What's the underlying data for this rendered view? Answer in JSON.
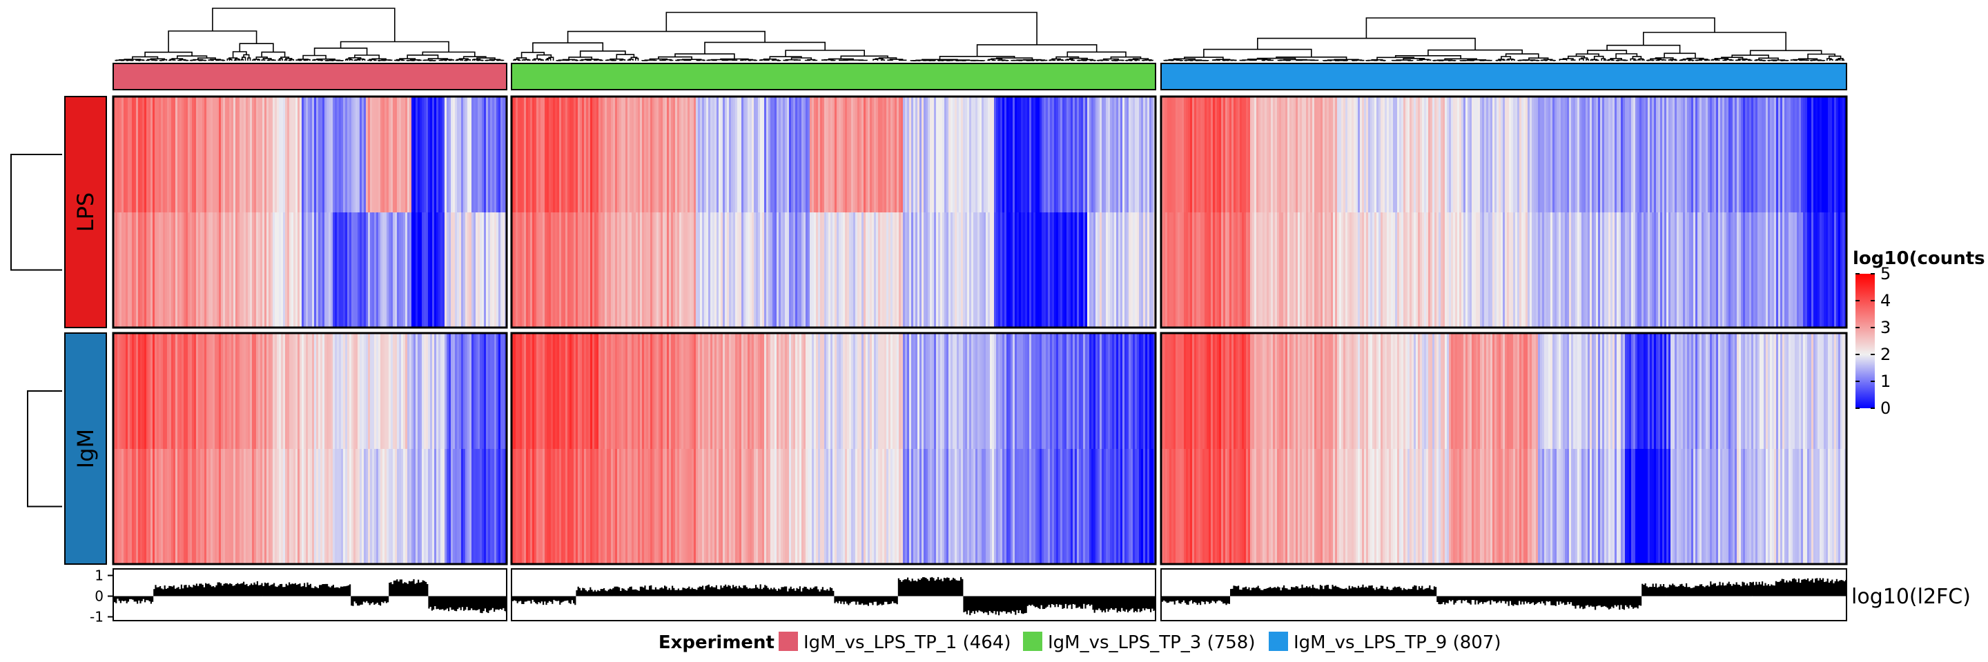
{
  "chart_data": {
    "type": "heatmap",
    "row_slices": [
      {
        "label": "LPS",
        "color": "#e31a1c",
        "rows": 2
      },
      {
        "label": "IgM",
        "color": "#1f78b4",
        "rows": 2
      }
    ],
    "column_groups": [
      {
        "name": "IgM_vs_LPS_TP_1",
        "count": 464,
        "color": "#e05a6e"
      },
      {
        "name": "IgM_vs_LPS_TP_3",
        "count": 758,
        "color": "#60d04a"
      },
      {
        "name": "IgM_vs_LPS_TP_9",
        "count": 807,
        "color": "#2196e6"
      }
    ],
    "color_scale": {
      "title": "log10(counts",
      "min": 0,
      "mid": 2,
      "max": 5,
      "low_color": "#0000ff",
      "mid_color": "#f0f0f0",
      "high_color": "#ff0000",
      "ticks": [
        "5",
        "4",
        "3",
        "2",
        "1",
        "0"
      ]
    },
    "segment_profiles": [
      [
        {
          "w": 4,
          "v": [
            3.7,
            3.3,
            3.9,
            3.6
          ]
        },
        {
          "w": 3,
          "v": [
            3.3,
            3.1,
            3.6,
            3.4
          ]
        },
        {
          "w": 3,
          "v": [
            2.9,
            2.7,
            3.2,
            3.0
          ]
        },
        {
          "w": 2,
          "v": [
            2.3,
            2.2,
            2.6,
            2.5
          ]
        },
        {
          "w": 2,
          "v": [
            1.2,
            1.3,
            2.3,
            2.2
          ]
        },
        {
          "w": 2,
          "v": [
            1.3,
            0.7,
            2.1,
            2.0
          ]
        },
        {
          "w": 3,
          "v": [
            3.0,
            1.3,
            2.1,
            1.9
          ]
        },
        {
          "w": 2,
          "v": [
            0.3,
            0.2,
            1.7,
            1.6
          ]
        },
        {
          "w": 2,
          "v": [
            1.6,
            1.9,
            1.0,
            0.9
          ]
        },
        {
          "w": 2,
          "v": [
            0.9,
            1.8,
            0.6,
            0.5
          ]
        }
      ],
      [
        {
          "w": 4,
          "v": [
            3.8,
            3.5,
            4.0,
            3.8
          ]
        },
        {
          "w": 4,
          "v": [
            3.1,
            2.9,
            3.5,
            3.4
          ]
        },
        {
          "w": 3,
          "v": [
            1.6,
            1.8,
            3.0,
            2.9
          ]
        },
        {
          "w": 2,
          "v": [
            1.2,
            1.4,
            2.5,
            2.4
          ]
        },
        {
          "w": 4,
          "v": [
            3.2,
            2.1,
            2.1,
            2.0
          ]
        },
        {
          "w": 4,
          "v": [
            1.8,
            1.7,
            1.5,
            1.4
          ]
        },
        {
          "w": 2,
          "v": [
            0.3,
            0.3,
            1.2,
            1.1
          ]
        },
        {
          "w": 2,
          "v": [
            0.8,
            0.2,
            0.9,
            0.8
          ]
        },
        {
          "w": 2,
          "v": [
            1.5,
            1.8,
            0.7,
            0.7
          ]
        },
        {
          "w": 1,
          "v": [
            1.6,
            1.9,
            0.5,
            0.4
          ]
        }
      ],
      [
        {
          "w": 4,
          "v": [
            3.8,
            3.6,
            4.0,
            3.9
          ]
        },
        {
          "w": 4,
          "v": [
            2.7,
            2.6,
            3.0,
            2.9
          ]
        },
        {
          "w": 3,
          "v": [
            1.9,
            2.2,
            2.4,
            2.3
          ]
        },
        {
          "w": 2,
          "v": [
            2.2,
            2.3,
            2.1,
            2.1
          ]
        },
        {
          "w": 4,
          "v": [
            1.8,
            1.9,
            3.1,
            3.0
          ]
        },
        {
          "w": 4,
          "v": [
            1.3,
            1.6,
            1.7,
            1.5
          ]
        },
        {
          "w": 2,
          "v": [
            1.4,
            1.5,
            0.6,
            0.2
          ]
        },
        {
          "w": 3,
          "v": [
            1.2,
            1.4,
            1.4,
            1.4
          ]
        },
        {
          "w": 3,
          "v": [
            1.0,
            1.3,
            1.8,
            1.7
          ]
        },
        {
          "w": 2,
          "v": [
            0.2,
            0.4,
            1.9,
            1.8
          ]
        }
      ]
    ],
    "bar_annotation": {
      "label": "log10(l2FC)",
      "ylim": [
        -1,
        1
      ],
      "yticks": [
        "1",
        "0",
        "-1"
      ],
      "segment_levels": [
        [
          -0.25,
          0.45,
          0.55,
          0.6,
          0.55,
          0.5,
          -0.35,
          0.7,
          -0.6,
          -0.7
        ],
        [
          -0.3,
          0.35,
          0.4,
          0.45,
          0.35,
          -0.35,
          0.8,
          -0.8,
          -0.5,
          -0.7
        ],
        [
          -0.3,
          0.4,
          0.45,
          0.4,
          -0.3,
          -0.35,
          -0.55,
          0.5,
          0.6,
          0.75
        ]
      ]
    },
    "legend": {
      "title": "Experiment",
      "entries": [
        "IgM_vs_LPS_TP_1 (464)",
        "IgM_vs_LPS_TP_3 (758)",
        "IgM_vs_LPS_TP_9 (807)"
      ]
    }
  }
}
